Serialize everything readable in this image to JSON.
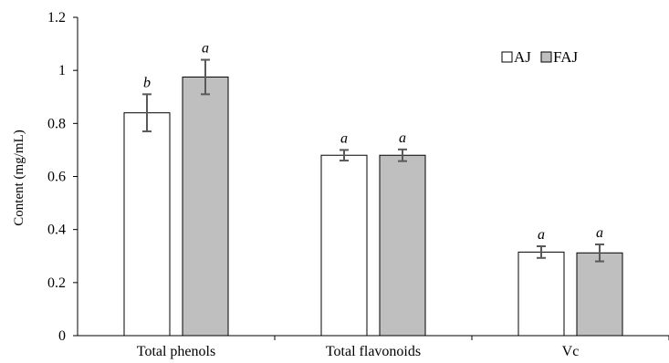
{
  "chart_data": {
    "type": "bar",
    "categories": [
      "Total phenols",
      "Total flavonoids",
      "Vc"
    ],
    "series": [
      {
        "name": "AJ",
        "color": "#ffffff",
        "values": [
          0.84,
          0.68,
          0.315
        ],
        "errors": [
          0.07,
          0.02,
          0.022
        ],
        "significance": [
          "b",
          "a",
          "a"
        ]
      },
      {
        "name": "FAJ",
        "color": "#bfbfbf",
        "values": [
          0.975,
          0.68,
          0.312
        ],
        "errors": [
          0.065,
          0.022,
          0.032
        ],
        "significance": [
          "a",
          "a",
          "a"
        ]
      }
    ],
    "ylabel": "Content (mg/mL)",
    "xlabel": "",
    "ylim": [
      0,
      1.2
    ],
    "yticks": [
      0,
      0.2,
      0.4,
      0.6,
      0.8,
      1,
      1.2
    ],
    "ytick_labels": [
      "0",
      "0.2",
      "0.4",
      "0.6",
      "0.8",
      "1",
      "1.2"
    ],
    "legend_position": "top-right",
    "grid": false
  }
}
